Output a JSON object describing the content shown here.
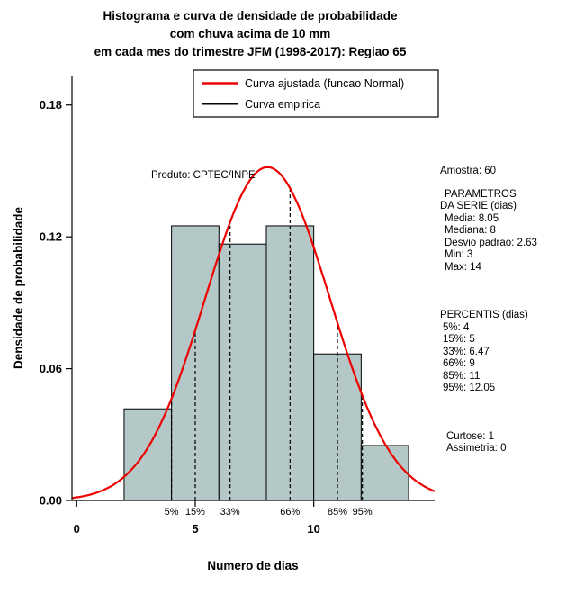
{
  "title": {
    "line1": "Histograma e curva de densidade de probabilidade",
    "line2": "com chuva acima de 10 mm",
    "line3": "em cada mes do trimestre JFM (1998-2017): Regiao 65"
  },
  "watermark": "Produto: CPTEC/INPE",
  "legend": [
    {
      "label": "Curva ajustada (funcao Normal)",
      "color": "#ee0000"
    },
    {
      "label": "Curva empirica",
      "color": "#000000"
    }
  ],
  "chart_data": {
    "type": "bar",
    "title": "Histograma e curva de densidade de probabilidade com chuva acima de 10 mm em cada mes do trimestre JFM (1998-2017): Regiao 65",
    "xlabel": "Numero de dias",
    "ylabel": "Densidade de probabilidade",
    "xlim": [
      -0.2,
      15.1
    ],
    "ylim": [
      0,
      0.193
    ],
    "x_ticks": [
      {
        "v": 0,
        "label": "0"
      },
      {
        "v": 5,
        "label": "5"
      },
      {
        "v": 10,
        "label": "10"
      }
    ],
    "y_ticks": [
      {
        "v": 0,
        "label": "0.00"
      },
      {
        "v": 0.06,
        "label": "0.06"
      },
      {
        "v": 0.12,
        "label": "0.12"
      },
      {
        "v": 0.18,
        "label": "0.18"
      }
    ],
    "histogram": {
      "bin_edges": [
        2,
        4,
        6,
        8,
        10,
        12,
        14
      ],
      "densities": [
        0.0417,
        0.125,
        0.1167,
        0.125,
        0.0667,
        0.025
      ],
      "counts": [
        5,
        15,
        14,
        15,
        8,
        3
      ],
      "fill": "#b4c8c8",
      "stroke": "#000000"
    },
    "normal_curve": {
      "mean": 8.05,
      "sd": 2.63,
      "color": "#ee0000"
    },
    "percentiles": [
      {
        "label": "5%",
        "value": 4
      },
      {
        "label": "15%",
        "value": 5
      },
      {
        "label": "33%",
        "value": 6.47
      },
      {
        "label": "66%",
        "value": 9
      },
      {
        "label": "85%",
        "value": 11
      },
      {
        "label": "95%",
        "value": 12.05
      }
    ],
    "summary": {
      "amostra": 60,
      "media": 8.05,
      "mediana": 8,
      "desvio_padrao": 2.63,
      "min": 3,
      "max": 14,
      "curtose": 1,
      "assimetria": 0
    }
  },
  "stats": {
    "amostra": "Amostra: 60",
    "params_header1": "PARAMETROS",
    "params_header2": "DA SERIE (dias)",
    "params": [
      "Media: 8.05",
      "Mediana: 8",
      "Desvio padrao: 2.63",
      "Min: 3",
      "Max: 14"
    ],
    "percentis_header": "PERCENTIS (dias)",
    "percentis": [
      "5%: 4",
      "15%: 5",
      "33%: 6.47",
      "66%: 9",
      "85%: 11",
      "95%: 12.05"
    ],
    "extras": [
      "Curtose: 1",
      "Assimetria: 0"
    ]
  }
}
